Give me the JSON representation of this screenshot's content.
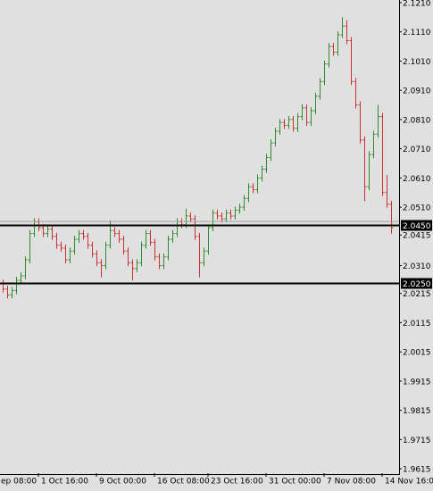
{
  "chart_data": {
    "type": "ohlc",
    "bull_color": "#2e8b2e",
    "bear_color": "#c83232",
    "ylim": [
      1.96,
      2.1219
    ],
    "yticks": [
      {
        "value": 2.121,
        "label": "2.1210"
      },
      {
        "value": 2.111,
        "label": "2.1110"
      },
      {
        "value": 2.101,
        "label": "2.1010"
      },
      {
        "value": 2.091,
        "label": "2.0910"
      },
      {
        "value": 2.081,
        "label": "2.0810"
      },
      {
        "value": 2.071,
        "label": "2.0710"
      },
      {
        "value": 2.061,
        "label": "2.0610"
      },
      {
        "value": 2.051,
        "label": "2.0510"
      },
      {
        "value": 2.0415,
        "label": "2.0415"
      },
      {
        "value": 2.031,
        "label": "2.0310"
      },
      {
        "value": 2.0215,
        "label": "2.0215"
      },
      {
        "value": 2.0115,
        "label": "2.0115"
      },
      {
        "value": 2.0015,
        "label": "2.0015"
      },
      {
        "value": 1.9915,
        "label": "1.9915"
      },
      {
        "value": 1.9815,
        "label": "1.9815"
      },
      {
        "value": 1.9715,
        "label": "1.9715"
      },
      {
        "value": 1.9615,
        "label": "1.9615"
      }
    ],
    "xticks": [
      {
        "value": -1,
        "label": "ep 08:00"
      },
      {
        "value": 8,
        "label": "1 Oct 16:00"
      },
      {
        "value": 21,
        "label": "9 Oct 00:00"
      },
      {
        "value": 34,
        "label": "16 Oct 08:00"
      },
      {
        "value": 46,
        "label": "23 Oct 16:00"
      },
      {
        "value": 59,
        "label": "31 Oct 00:00"
      },
      {
        "value": 72,
        "label": "7 Nov 08:00"
      },
      {
        "value": 85,
        "label": "14 Nov 16:00"
      }
    ],
    "levels": [
      {
        "value": 2.045,
        "label": "2.0450"
      },
      {
        "value": 2.025,
        "label": "2.0250"
      }
    ],
    "bid": 2.0461,
    "ohlc": [
      [
        2.025,
        2.0262,
        2.0218,
        2.023
      ],
      [
        2.023,
        2.0242,
        2.0198,
        2.021
      ],
      [
        2.021,
        2.0237,
        2.0198,
        2.0225
      ],
      [
        2.0225,
        2.0272,
        2.0213,
        2.026
      ],
      [
        2.026,
        2.0287,
        2.0248,
        2.0275
      ],
      [
        2.0275,
        2.0342,
        2.0263,
        2.033
      ],
      [
        2.033,
        2.0432,
        2.0318,
        2.042
      ],
      [
        2.042,
        2.0472,
        2.0408,
        2.046
      ],
      [
        2.046,
        2.0472,
        2.0428,
        2.044
      ],
      [
        2.044,
        2.0452,
        2.0408,
        2.042
      ],
      [
        2.042,
        2.0447,
        2.0408,
        2.0435
      ],
      [
        2.0435,
        2.0447,
        2.0398,
        2.041
      ],
      [
        2.041,
        2.0422,
        2.0368,
        2.038
      ],
      [
        2.038,
        2.0392,
        2.0358,
        2.037
      ],
      [
        2.037,
        2.0382,
        2.0318,
        2.033
      ],
      [
        2.033,
        2.0372,
        2.0318,
        2.036
      ],
      [
        2.036,
        2.0412,
        2.0348,
        2.04
      ],
      [
        2.04,
        2.0432,
        2.0388,
        2.042
      ],
      [
        2.042,
        2.0432,
        2.0398,
        2.041
      ],
      [
        2.041,
        2.0422,
        2.0368,
        2.038
      ],
      [
        2.038,
        2.0392,
        2.0338,
        2.035
      ],
      [
        2.035,
        2.0362,
        2.0308,
        2.032
      ],
      [
        2.032,
        2.0332,
        2.027,
        2.031
      ],
      [
        2.031,
        2.0392,
        2.0298,
        2.038
      ],
      [
        2.038,
        2.0465,
        2.0368,
        2.043
      ],
      [
        2.043,
        2.0442,
        2.0408,
        2.042
      ],
      [
        2.042,
        2.0432,
        2.0388,
        2.04
      ],
      [
        2.04,
        2.0412,
        2.0348,
        2.036
      ],
      [
        2.036,
        2.0372,
        2.0308,
        2.032
      ],
      [
        2.032,
        2.0332,
        2.026,
        2.03
      ],
      [
        2.03,
        2.0332,
        2.0288,
        2.032
      ],
      [
        2.032,
        2.0392,
        2.0308,
        2.038
      ],
      [
        2.038,
        2.0432,
        2.0368,
        2.042
      ],
      [
        2.042,
        2.0432,
        2.0378,
        2.039
      ],
      [
        2.039,
        2.0402,
        2.0328,
        2.034
      ],
      [
        2.034,
        2.0352,
        2.0298,
        2.031
      ],
      [
        2.031,
        2.0352,
        2.0298,
        2.034
      ],
      [
        2.034,
        2.0412,
        2.0328,
        2.04
      ],
      [
        2.04,
        2.0432,
        2.0388,
        2.042
      ],
      [
        2.042,
        2.0472,
        2.0408,
        2.046
      ],
      [
        2.046,
        2.0472,
        2.0438,
        2.045
      ],
      [
        2.045,
        2.0505,
        2.0438,
        2.048
      ],
      [
        2.048,
        2.0492,
        2.0458,
        2.047
      ],
      [
        2.047,
        2.0482,
        2.0398,
        2.041
      ],
      [
        2.041,
        2.0422,
        2.027,
        2.032
      ],
      [
        2.032,
        2.0372,
        2.0308,
        2.036
      ],
      [
        2.036,
        2.0452,
        2.0348,
        2.044
      ],
      [
        2.044,
        2.0502,
        2.0428,
        2.049
      ],
      [
        2.049,
        2.0502,
        2.0468,
        2.048
      ],
      [
        2.048,
        2.0492,
        2.0458,
        2.047
      ],
      [
        2.047,
        2.0502,
        2.0458,
        2.049
      ],
      [
        2.049,
        2.0502,
        2.0468,
        2.048
      ],
      [
        2.048,
        2.0512,
        2.0468,
        2.05
      ],
      [
        2.05,
        2.0522,
        2.0488,
        2.051
      ],
      [
        2.051,
        2.0552,
        2.0498,
        2.054
      ],
      [
        2.054,
        2.0592,
        2.0528,
        2.058
      ],
      [
        2.058,
        2.0592,
        2.0558,
        2.057
      ],
      [
        2.057,
        2.0622,
        2.0558,
        2.061
      ],
      [
        2.061,
        2.0652,
        2.0598,
        2.064
      ],
      [
        2.064,
        2.0692,
        2.0628,
        2.068
      ],
      [
        2.068,
        2.0742,
        2.0668,
        2.073
      ],
      [
        2.073,
        2.0782,
        2.0718,
        2.077
      ],
      [
        2.077,
        2.0812,
        2.0758,
        2.08
      ],
      [
        2.08,
        2.0812,
        2.0778,
        2.079
      ],
      [
        2.079,
        2.0822,
        2.0778,
        2.081
      ],
      [
        2.081,
        2.0822,
        2.0768,
        2.078
      ],
      [
        2.078,
        2.0832,
        2.0768,
        2.082
      ],
      [
        2.082,
        2.0862,
        2.0808,
        2.085
      ],
      [
        2.085,
        2.0862,
        2.0788,
        2.08
      ],
      [
        2.08,
        2.0852,
        2.0788,
        2.084
      ],
      [
        2.084,
        2.0902,
        2.0828,
        2.089
      ],
      [
        2.089,
        2.0952,
        2.0878,
        2.094
      ],
      [
        2.094,
        2.1012,
        2.0928,
        2.1
      ],
      [
        2.1,
        2.1072,
        2.0988,
        2.106
      ],
      [
        2.106,
        2.1072,
        2.1028,
        2.104
      ],
      [
        2.104,
        2.1112,
        2.1028,
        2.11
      ],
      [
        2.11,
        2.116,
        2.1088,
        2.113
      ],
      [
        2.113,
        2.115,
        2.1068,
        2.108
      ],
      [
        2.108,
        2.1092,
        2.0928,
        2.094
      ],
      [
        2.094,
        2.0952,
        2.0848,
        2.086
      ],
      [
        2.086,
        2.0872,
        2.0728,
        2.074
      ],
      [
        2.074,
        2.0752,
        2.053,
        2.058
      ],
      [
        2.058,
        2.0702,
        2.0568,
        2.069
      ],
      [
        2.069,
        2.0772,
        2.0678,
        2.076
      ],
      [
        2.076,
        2.086,
        2.0748,
        2.082
      ],
      [
        2.082,
        2.0832,
        2.0548,
        2.056
      ],
      [
        2.056,
        2.062,
        2.0508,
        2.052
      ],
      [
        2.052,
        2.0532,
        2.042,
        2.044
      ]
    ]
  }
}
